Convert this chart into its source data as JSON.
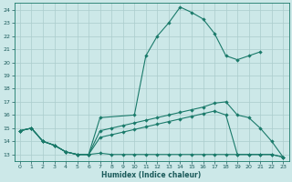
{
  "xlabel": "Humidex (Indice chaleur)",
  "bg_color": "#cce8e8",
  "grid_color": "#aacccc",
  "line_color": "#1a7a6a",
  "xlim": [
    -0.5,
    23.5
  ],
  "ylim": [
    12.5,
    24.5
  ],
  "xticks": [
    0,
    1,
    2,
    3,
    4,
    5,
    6,
    7,
    8,
    9,
    10,
    11,
    12,
    13,
    14,
    15,
    16,
    17,
    18,
    19,
    20,
    21,
    22,
    23
  ],
  "yticks": [
    13,
    14,
    15,
    16,
    17,
    18,
    19,
    20,
    21,
    22,
    23,
    24
  ],
  "line1_x": [
    0,
    1,
    2,
    3,
    4,
    5,
    6,
    7,
    8,
    9,
    10,
    11,
    12,
    13,
    14,
    15,
    16,
    17,
    18,
    19,
    20,
    21,
    22,
    23
  ],
  "line1_y": [
    14.8,
    15.0,
    14.0,
    13.7,
    13.2,
    13.0,
    13.0,
    13.1,
    13.0,
    13.0,
    13.0,
    13.0,
    13.0,
    13.0,
    13.0,
    13.0,
    13.0,
    13.0,
    13.0,
    13.0,
    13.0,
    13.0,
    13.0,
    12.8
  ],
  "line2_x": [
    0,
    1,
    2,
    3,
    4,
    5,
    6,
    7,
    8,
    9,
    10,
    11,
    12,
    13,
    14,
    15,
    16,
    17,
    18,
    19,
    20,
    21,
    22,
    23
  ],
  "line2_y": [
    14.8,
    15.0,
    14.0,
    13.7,
    13.2,
    13.0,
    13.0,
    14.3,
    14.5,
    14.7,
    14.9,
    15.1,
    15.3,
    15.5,
    15.7,
    15.9,
    16.1,
    16.3,
    16.0,
    13.0,
    13.0,
    13.0,
    13.0,
    12.8
  ],
  "line3_x": [
    0,
    1,
    2,
    3,
    4,
    5,
    6,
    7,
    8,
    9,
    10,
    11,
    12,
    13,
    14,
    15,
    16,
    17,
    18,
    19,
    20,
    21,
    22,
    23
  ],
  "line3_y": [
    14.8,
    15.0,
    14.0,
    13.7,
    13.2,
    13.0,
    13.0,
    14.8,
    15.0,
    15.2,
    15.4,
    15.6,
    15.8,
    16.0,
    16.2,
    16.4,
    16.6,
    16.9,
    17.0,
    16.0,
    15.8,
    15.0,
    14.0,
    12.8
  ],
  "line4_x": [
    0,
    1,
    2,
    3,
    4,
    5,
    6,
    7,
    10,
    11,
    12,
    13,
    14,
    15,
    16,
    17,
    18,
    19,
    20,
    21
  ],
  "line4_y": [
    14.8,
    15.0,
    14.0,
    13.7,
    13.2,
    13.0,
    13.0,
    15.8,
    16.0,
    20.5,
    22.0,
    23.0,
    24.2,
    23.8,
    23.3,
    22.2,
    20.5,
    20.2,
    20.5,
    20.8
  ]
}
